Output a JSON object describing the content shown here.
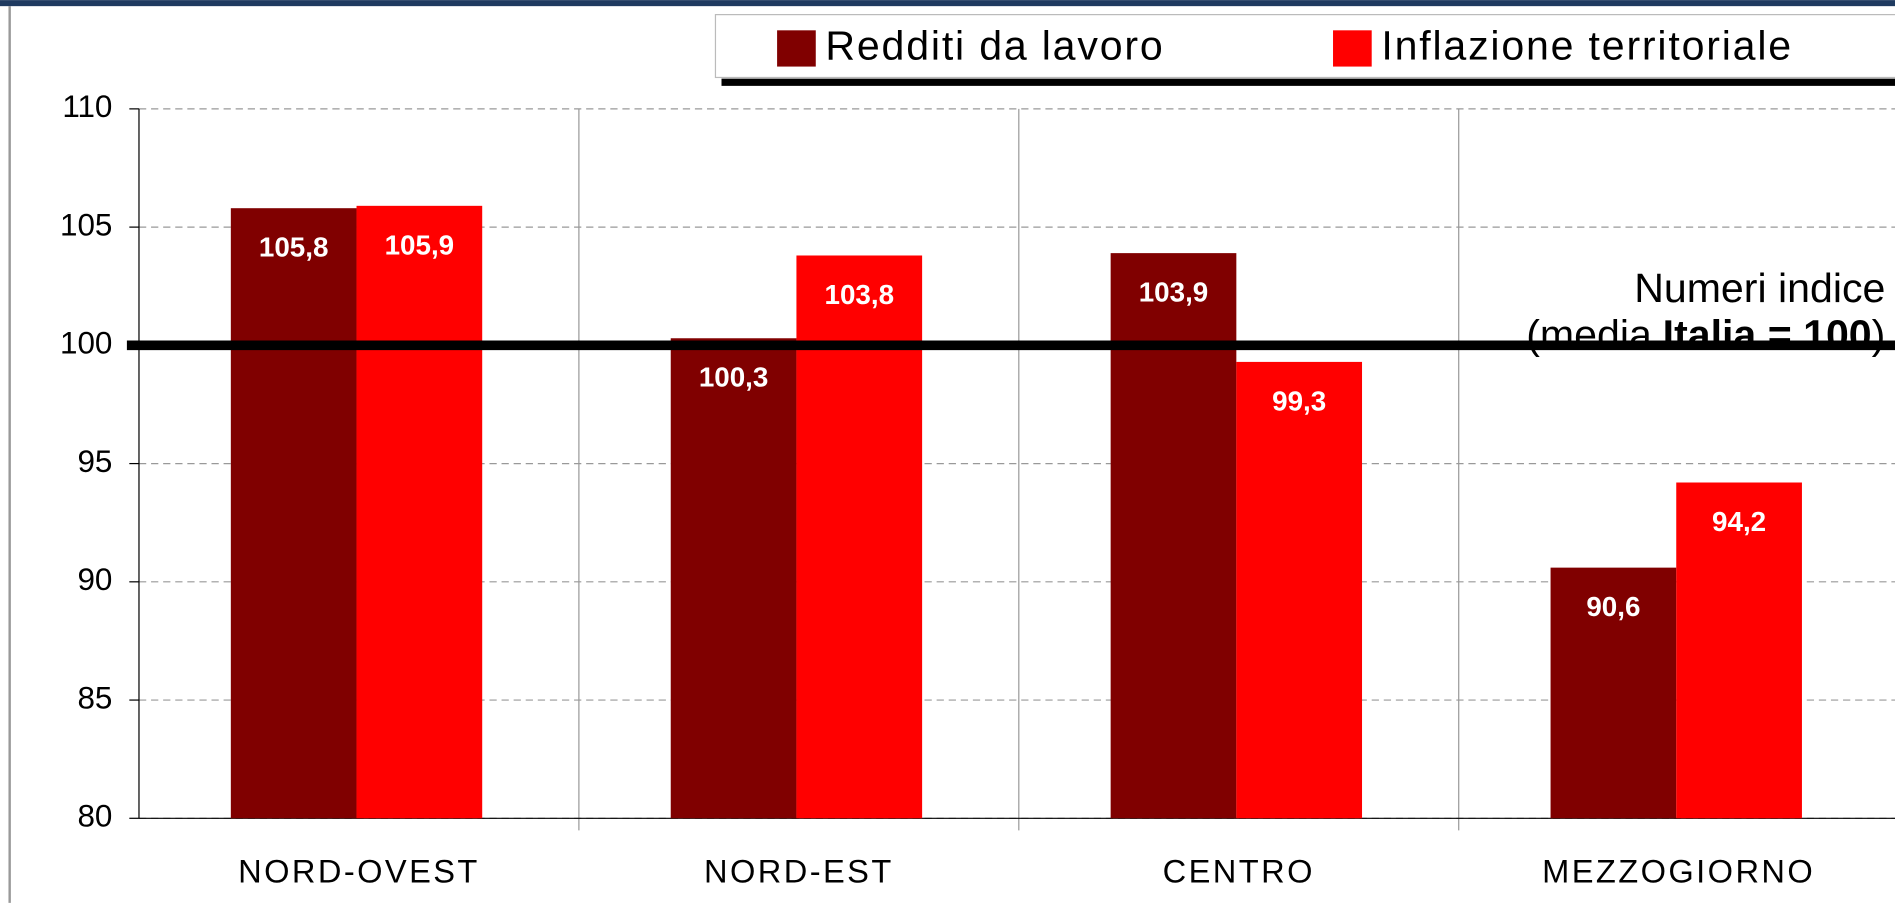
{
  "chart_data": {
    "type": "bar",
    "categories": [
      "NORD-OVEST",
      "NORD-EST",
      "CENTRO",
      "MEZZOGIORNO"
    ],
    "series": [
      {
        "name": "Redditi da lavoro",
        "color": "#800000",
        "values": [
          105.8,
          100.3,
          103.9,
          90.6
        ],
        "value_labels": [
          "105,8",
          "100,3",
          "103,9",
          "90,6"
        ]
      },
      {
        "name": "Inflazione territoriale",
        "color": "#ff0000",
        "values": [
          105.9,
          103.8,
          99.3,
          94.2
        ],
        "value_labels": [
          "105,9",
          "103,8",
          "99,3",
          "94,2"
        ]
      }
    ],
    "ylim": [
      80,
      110
    ],
    "yticks": [
      80,
      85,
      90,
      95,
      100,
      105,
      110
    ],
    "grid": true,
    "reference_line": 100,
    "annotation": {
      "line1": "Numeri indice",
      "line2_start": "(media",
      "line2_bold": "Italia = 100",
      "line2_end": ")"
    },
    "legend": "top-right"
  }
}
